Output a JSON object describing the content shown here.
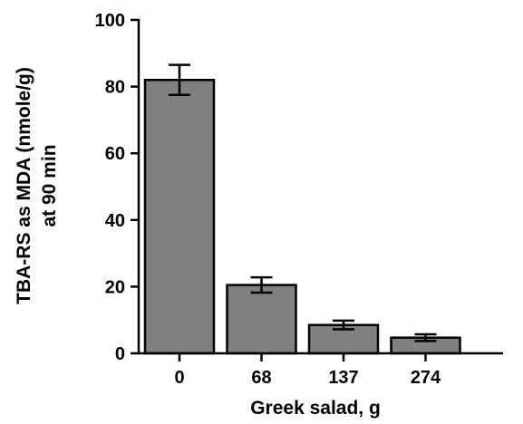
{
  "chart_data": {
    "type": "bar",
    "title": "",
    "xlabel": "Greek salad, g",
    "ylabel_lines": [
      "TBA-RS as MDA (nmole/g)",
      "at 90 min"
    ],
    "categories": [
      "0",
      "68",
      "137",
      "274"
    ],
    "values": [
      82,
      20.5,
      8.5,
      4.7
    ],
    "errors": [
      4.5,
      2.3,
      1.3,
      1.0
    ],
    "ylim": [
      0,
      100
    ],
    "yticks": [
      "0",
      "20",
      "40",
      "60",
      "80",
      "100"
    ],
    "bar_color": "#808080",
    "grid": false,
    "legend": "none"
  }
}
